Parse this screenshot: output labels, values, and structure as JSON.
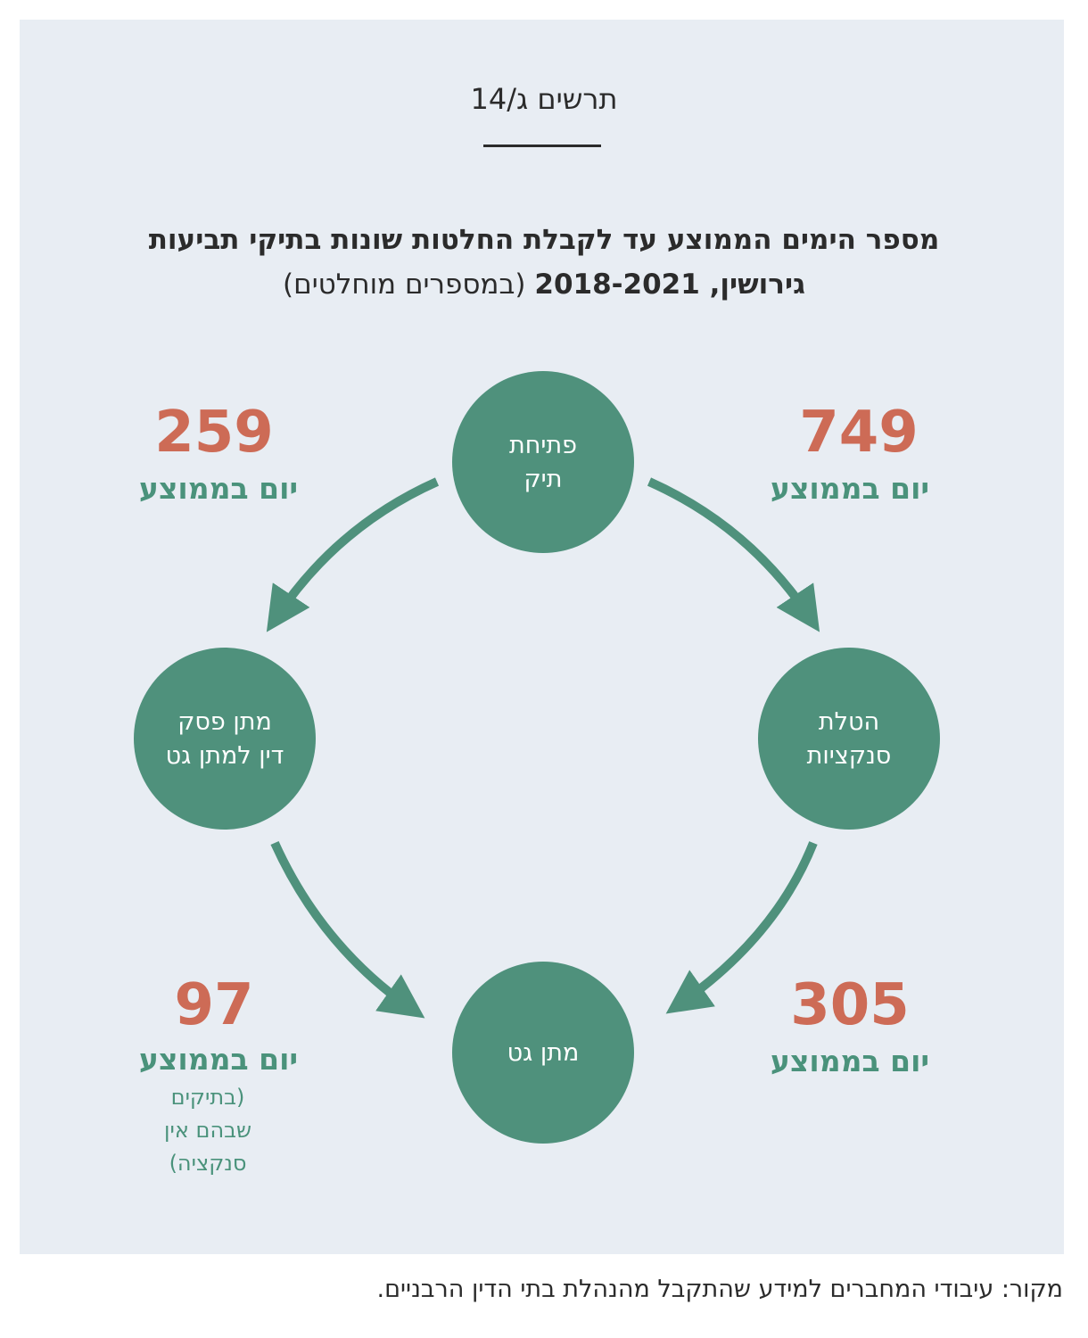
{
  "figure": {
    "label": "תרשים ג/14",
    "title_line1": "מספר הימים הממוצע עד לקבלת החלטות שונות בתיקי תביעות",
    "title_line2_bold": "גירושין, 2018-2021",
    "title_line2_normal": "(במספרים מוחלטים)"
  },
  "colors": {
    "panel_bg": "#e8edf3",
    "node_fill": "#4f917c",
    "number": "#cd6b56",
    "unit_text": "#4a927b"
  },
  "nodes": {
    "top": {
      "line1": "פתיחת",
      "line2": "תיק"
    },
    "left": {
      "line1": "מתן פסק",
      "line2": "דין למתן גט"
    },
    "right": {
      "line1": "הטלת",
      "line2": "סנקציות"
    },
    "bottom": {
      "line1": "מתן גט"
    }
  },
  "stats": {
    "top_left": {
      "value": "259",
      "unit": "יום בממוצע"
    },
    "top_right": {
      "value": "749",
      "unit": "יום בממוצע"
    },
    "bottom_left": {
      "value": "97",
      "unit": "יום בממוצע",
      "note_line1": "(בתיקים",
      "note_line2": "שבהם אין",
      "note_line3": "סנקציה)"
    },
    "bottom_right": {
      "value": "305",
      "unit": "יום בממוצע"
    }
  },
  "source": "מקור: עיבודי המחברים למידע שהתקבל מהנהלת בתי הדין הרבניים."
}
